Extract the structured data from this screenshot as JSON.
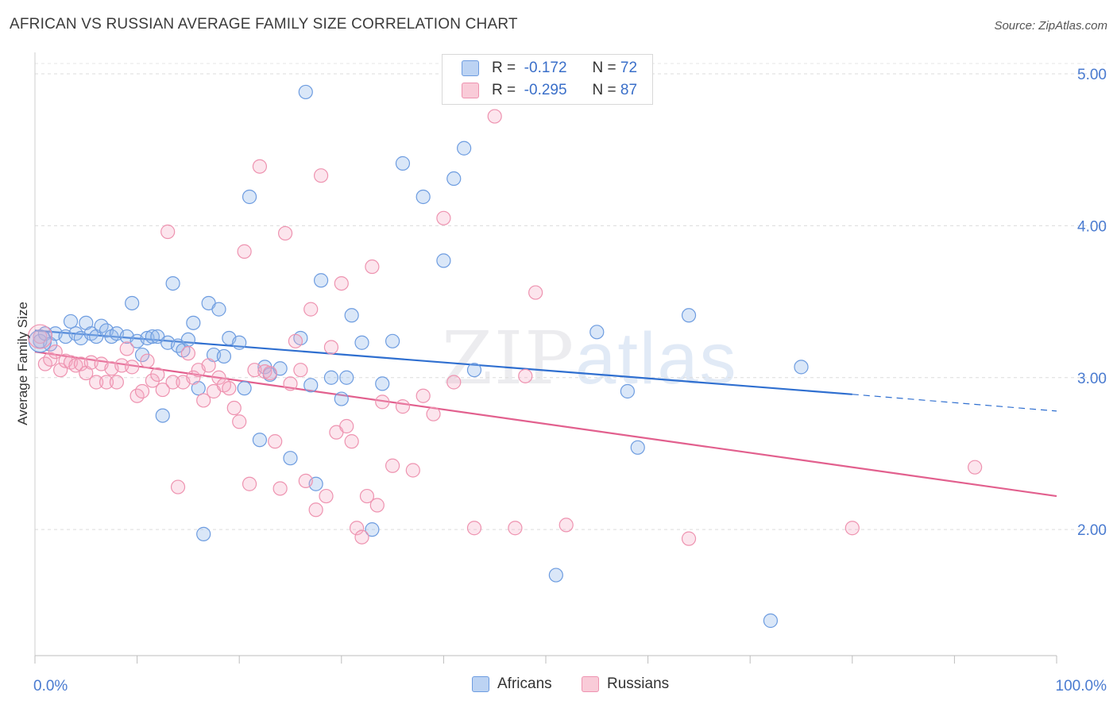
{
  "chart_data": {
    "type": "scatter",
    "title": "AFRICAN VS RUSSIAN AVERAGE FAMILY SIZE CORRELATION CHART",
    "source": "Source: ZipAtlas.com",
    "xlabel": "",
    "ylabel": "Average Family Size",
    "xlim": [
      0,
      100
    ],
    "ylim": [
      1.17,
      5.12
    ],
    "x_tick_labels": [
      "0.0%",
      "100.0%"
    ],
    "y_ticks": [
      2.0,
      3.0,
      4.0,
      5.0
    ],
    "y_tick_labels": [
      "2.00",
      "3.00",
      "4.00",
      "5.00"
    ],
    "grid": true,
    "legend_position": "top-center",
    "watermark": "ZIPatlas",
    "series": [
      {
        "name": "Africans",
        "color": "#5b8fdc",
        "R": "-0.172",
        "N": "72",
        "trend": {
          "x0": 0,
          "y0": 3.31,
          "x1": 80,
          "y1": 2.89,
          "dash_x1": 100,
          "dash_y1": 2.78
        },
        "points": [
          [
            0.5,
            3.24
          ],
          [
            1,
            3.29
          ],
          [
            1.5,
            3.22
          ],
          [
            2,
            3.29
          ],
          [
            3,
            3.27
          ],
          [
            3.5,
            3.37
          ],
          [
            4,
            3.29
          ],
          [
            4.5,
            3.26
          ],
          [
            5,
            3.36
          ],
          [
            5.5,
            3.29
          ],
          [
            6,
            3.27
          ],
          [
            6.5,
            3.34
          ],
          [
            7,
            3.31
          ],
          [
            7.5,
            3.27
          ],
          [
            8,
            3.29
          ],
          [
            9,
            3.27
          ],
          [
            9.5,
            3.49
          ],
          [
            10,
            3.24
          ],
          [
            10.5,
            3.15
          ],
          [
            11,
            3.26
          ],
          [
            11.5,
            3.27
          ],
          [
            12,
            3.27
          ],
          [
            12.5,
            2.75
          ],
          [
            13,
            3.23
          ],
          [
            13.5,
            3.62
          ],
          [
            14,
            3.21
          ],
          [
            14.5,
            3.18
          ],
          [
            15,
            3.25
          ],
          [
            15.5,
            3.36
          ],
          [
            16,
            2.93
          ],
          [
            16.5,
            1.97
          ],
          [
            17,
            3.49
          ],
          [
            17.5,
            3.15
          ],
          [
            18,
            3.45
          ],
          [
            18.5,
            3.14
          ],
          [
            19,
            3.26
          ],
          [
            20,
            3.23
          ],
          [
            20.5,
            2.93
          ],
          [
            21,
            4.19
          ],
          [
            22,
            2.59
          ],
          [
            22.5,
            3.07
          ],
          [
            23,
            3.02
          ],
          [
            24,
            3.06
          ],
          [
            25,
            2.47
          ],
          [
            26,
            3.26
          ],
          [
            26.5,
            4.88
          ],
          [
            27,
            2.95
          ],
          [
            27.5,
            2.3
          ],
          [
            28,
            3.64
          ],
          [
            29,
            3.0
          ],
          [
            30,
            2.86
          ],
          [
            30.5,
            3.0
          ],
          [
            31,
            3.41
          ],
          [
            32,
            3.23
          ],
          [
            33,
            2.0
          ],
          [
            34,
            2.96
          ],
          [
            35,
            3.24
          ],
          [
            36,
            4.41
          ],
          [
            38,
            4.19
          ],
          [
            40,
            3.77
          ],
          [
            41,
            4.31
          ],
          [
            42,
            4.51
          ],
          [
            43,
            3.05
          ],
          [
            51,
            1.7
          ],
          [
            55,
            3.3
          ],
          [
            58,
            2.91
          ],
          [
            59,
            2.54
          ],
          [
            64,
            3.41
          ],
          [
            72,
            1.4
          ],
          [
            75,
            3.07
          ]
        ]
      },
      {
        "name": "Russians",
        "color": "#ef8fad",
        "R": "-0.295",
        "N": "87",
        "trend": {
          "x0": 0,
          "y0": 3.17,
          "x1": 100,
          "y1": 2.22
        },
        "points": [
          [
            0.5,
            3.27
          ],
          [
            1,
            3.09
          ],
          [
            1.5,
            3.12
          ],
          [
            2,
            3.17
          ],
          [
            2.5,
            3.05
          ],
          [
            3,
            3.11
          ],
          [
            3.5,
            3.1
          ],
          [
            4,
            3.08
          ],
          [
            4.5,
            3.09
          ],
          [
            5,
            3.03
          ],
          [
            5.5,
            3.1
          ],
          [
            6,
            2.97
          ],
          [
            6.5,
            3.09
          ],
          [
            7,
            2.97
          ],
          [
            7.5,
            3.06
          ],
          [
            8,
            2.97
          ],
          [
            8.5,
            3.08
          ],
          [
            9,
            3.19
          ],
          [
            9.5,
            3.07
          ],
          [
            10,
            2.88
          ],
          [
            10.5,
            2.91
          ],
          [
            11,
            3.11
          ],
          [
            11.5,
            2.98
          ],
          [
            12,
            3.02
          ],
          [
            12.5,
            2.92
          ],
          [
            13,
            3.96
          ],
          [
            13.5,
            2.97
          ],
          [
            14,
            2.28
          ],
          [
            14.5,
            2.97
          ],
          [
            15,
            3.16
          ],
          [
            15.5,
            3.0
          ],
          [
            16,
            3.05
          ],
          [
            16.5,
            2.85
          ],
          [
            17,
            3.08
          ],
          [
            17.5,
            2.91
          ],
          [
            18,
            3.0
          ],
          [
            18.5,
            2.95
          ],
          [
            19,
            2.93
          ],
          [
            19.5,
            2.8
          ],
          [
            20,
            2.71
          ],
          [
            20.5,
            3.83
          ],
          [
            21,
            2.3
          ],
          [
            21.5,
            3.05
          ],
          [
            22,
            4.39
          ],
          [
            22.5,
            3.04
          ],
          [
            23,
            3.03
          ],
          [
            23.5,
            2.58
          ],
          [
            24,
            2.27
          ],
          [
            24.5,
            3.95
          ],
          [
            25,
            2.96
          ],
          [
            25.5,
            3.24
          ],
          [
            26,
            3.05
          ],
          [
            26.5,
            2.32
          ],
          [
            27,
            3.45
          ],
          [
            27.5,
            2.13
          ],
          [
            28,
            4.33
          ],
          [
            28.5,
            2.22
          ],
          [
            29,
            3.2
          ],
          [
            29.5,
            2.64
          ],
          [
            30,
            3.62
          ],
          [
            30.5,
            2.68
          ],
          [
            31,
            2.58
          ],
          [
            31.5,
            2.01
          ],
          [
            32,
            1.95
          ],
          [
            32.5,
            2.22
          ],
          [
            33,
            3.73
          ],
          [
            33.5,
            2.16
          ],
          [
            34,
            2.84
          ],
          [
            35,
            2.42
          ],
          [
            36,
            2.81
          ],
          [
            37,
            2.39
          ],
          [
            38,
            2.88
          ],
          [
            39,
            2.76
          ],
          [
            40,
            4.05
          ],
          [
            41,
            2.97
          ],
          [
            43,
            2.01
          ],
          [
            45,
            4.72
          ],
          [
            47,
            2.01
          ],
          [
            48,
            3.01
          ],
          [
            49,
            3.56
          ],
          [
            52,
            2.03
          ],
          [
            64,
            1.94
          ],
          [
            80,
            2.01
          ],
          [
            92,
            2.41
          ]
        ]
      }
    ]
  },
  "legend": {
    "rows": [
      {
        "r_label": "R =",
        "r_value": "-0.172",
        "n_label": "N =",
        "n_value": "72"
      },
      {
        "r_label": "R =",
        "r_value": "-0.295",
        "n_label": "N =",
        "n_value": "87"
      }
    ]
  },
  "bottom_legend": {
    "africans": "Africans",
    "russians": "Russians"
  }
}
